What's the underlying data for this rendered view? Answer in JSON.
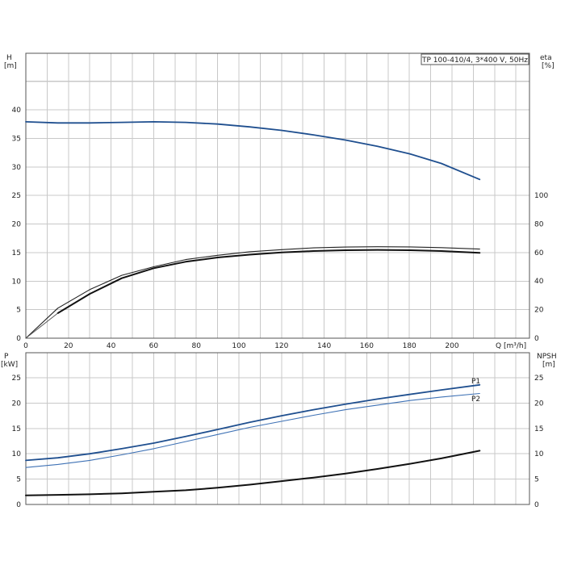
{
  "chart_data": [
    {
      "type": "line",
      "title": "TP 100-410/4, 3*400 V, 50Hz",
      "xlabel": "Q [m³/h]",
      "xlim": [
        0,
        240
      ],
      "x_ticks": [
        "0",
        "20",
        "40",
        "60",
        "80",
        "100",
        "120",
        "140",
        "160",
        "180",
        "200"
      ],
      "left_axis": {
        "label_top": "H",
        "label_unit": "[m]",
        "ylim": [
          0,
          45
        ],
        "ticks": [
          "0",
          "5",
          "10",
          "15",
          "20",
          "25",
          "30",
          "35",
          "40"
        ]
      },
      "right_axis": {
        "label_top": "eta",
        "label_unit": "[%]",
        "ylim": [
          0,
          100
        ],
        "ticks": [
          "0",
          "20",
          "40",
          "60",
          "80",
          "100"
        ]
      },
      "grid": true,
      "series": [
        {
          "axis": "left",
          "color": "#1f4f8f",
          "width": 1.8,
          "x": [
            0,
            15,
            30,
            45,
            60,
            75,
            90,
            105,
            120,
            135,
            150,
            165,
            180,
            195,
            213
          ],
          "y": [
            37.9,
            37.7,
            37.7,
            37.8,
            37.9,
            37.8,
            37.5,
            37.0,
            36.4,
            35.6,
            34.7,
            33.6,
            32.3,
            30.6,
            27.8
          ]
        },
        {
          "axis": "right",
          "color": "#222222",
          "width": 1.1,
          "x": [
            0,
            15,
            30,
            45,
            60,
            75,
            90,
            105,
            120,
            135,
            150,
            165,
            180,
            195,
            213
          ],
          "y": [
            0,
            21,
            34,
            44,
            50,
            55,
            58,
            60.5,
            62,
            63.2,
            63.8,
            64.0,
            63.9,
            63.4,
            62.4
          ]
        },
        {
          "axis": "right",
          "color": "#111111",
          "width": 2.0,
          "x": [
            15,
            30,
            45,
            60,
            75,
            90,
            105,
            120,
            135,
            150,
            165,
            180,
            195,
            213
          ],
          "y": [
            17.5,
            31,
            42,
            49,
            53.5,
            56.5,
            58.5,
            60,
            61,
            61.6,
            61.8,
            61.6,
            61.0,
            59.8
          ]
        },
        {
          "axis": "right",
          "color": "#555555",
          "width": 1.0,
          "x": [
            0,
            15
          ],
          "y": [
            0,
            17.5
          ]
        }
      ]
    },
    {
      "type": "line",
      "xlim": [
        0,
        240
      ],
      "left_axis": {
        "label_top": "P",
        "label_unit": "[kW]",
        "ylim": [
          0,
          28
        ],
        "ticks": [
          "0",
          "5",
          "10",
          "15",
          "20",
          "25"
        ]
      },
      "right_axis": {
        "label_top": "NPSH",
        "label_unit": "[m]",
        "ylim": [
          0,
          28
        ],
        "ticks": [
          "0",
          "5",
          "10",
          "15",
          "20",
          "25"
        ]
      },
      "grid": true,
      "series": [
        {
          "name": "P1",
          "axis": "left",
          "color": "#1f4f8f",
          "width": 1.8,
          "x": [
            0,
            15,
            30,
            45,
            60,
            75,
            90,
            105,
            120,
            135,
            150,
            165,
            180,
            195,
            213
          ],
          "y": [
            8.7,
            9.2,
            10.0,
            11.0,
            12.1,
            13.4,
            14.8,
            16.2,
            17.5,
            18.7,
            19.8,
            20.8,
            21.7,
            22.6,
            23.6
          ]
        },
        {
          "name": "P2",
          "axis": "left",
          "color": "#3f72b5",
          "width": 1.1,
          "x": [
            0,
            15,
            30,
            45,
            60,
            75,
            90,
            105,
            120,
            135,
            150,
            165,
            180,
            195,
            213
          ],
          "y": [
            7.3,
            7.9,
            8.7,
            9.8,
            11.0,
            12.4,
            13.8,
            15.2,
            16.4,
            17.6,
            18.7,
            19.6,
            20.5,
            21.2,
            21.9
          ]
        },
        {
          "axis": "right",
          "color": "#111111",
          "width": 2.0,
          "x": [
            0,
            15,
            30,
            45,
            60,
            75,
            90,
            105,
            120,
            135,
            150,
            165,
            180,
            195,
            213
          ],
          "y": [
            1.8,
            1.9,
            2.0,
            2.2,
            2.5,
            2.8,
            3.3,
            3.9,
            4.6,
            5.3,
            6.1,
            7.0,
            8.0,
            9.1,
            10.6
          ]
        }
      ]
    }
  ]
}
